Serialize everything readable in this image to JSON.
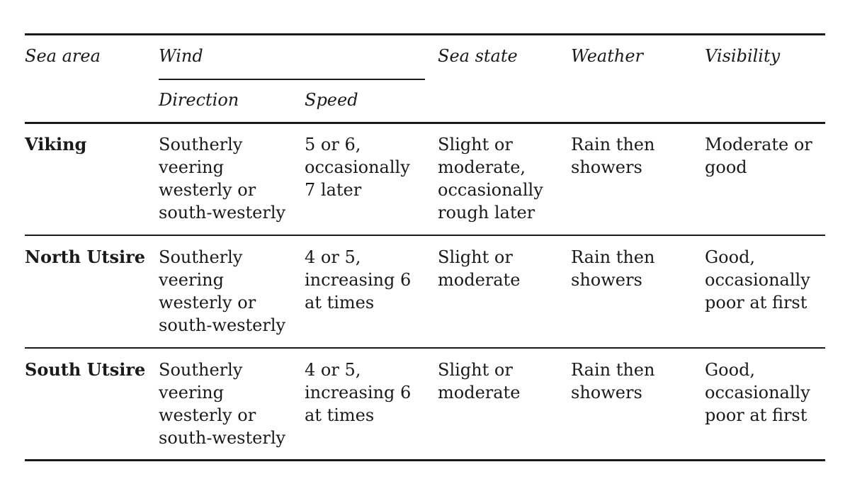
{
  "headers": {
    "sea_area": "Sea area",
    "wind": "Wind",
    "direction": "Direction",
    "speed": "Speed",
    "sea_state": "Sea state",
    "weather": "Weather",
    "visibility": "Visibility"
  },
  "rows": [
    {
      "area": "Viking",
      "direction": [
        "Southerly",
        "veering",
        "westerly or",
        "south-westerly"
      ],
      "speed": [
        "5 or 6,",
        "occasionally",
        "7 later"
      ],
      "sea_state": [
        "Slight or",
        "moderate,",
        "occasionally",
        "rough later"
      ],
      "weather": [
        "Rain then",
        "showers"
      ],
      "visibility": [
        "Moderate or",
        "good"
      ]
    },
    {
      "area": "North Utsire",
      "direction": [
        "Southerly",
        "veering",
        "westerly or",
        "south-westerly"
      ],
      "speed": [
        "4 or 5,",
        "increasing 6",
        "at times"
      ],
      "sea_state": [
        "Slight or",
        "moderate"
      ],
      "weather": [
        "Rain then",
        "showers"
      ],
      "visibility": [
        "Good,",
        "occasionally",
        "poor at first"
      ]
    },
    {
      "area": "South Utsire",
      "direction": [
        "Southerly",
        "veering",
        "westerly or",
        "south-westerly"
      ],
      "speed": [
        "4 or 5,",
        "increasing 6",
        "at times"
      ],
      "sea_state": [
        "Slight or",
        "moderate"
      ],
      "weather": [
        "Rain then",
        "showers"
      ],
      "visibility": [
        "Good,",
        "occasionally",
        "poor at first"
      ]
    }
  ]
}
